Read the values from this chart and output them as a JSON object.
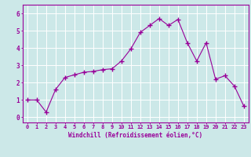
{
  "x": [
    0,
    1,
    2,
    3,
    4,
    5,
    6,
    7,
    8,
    9,
    10,
    11,
    12,
    13,
    14,
    15,
    16,
    17,
    18,
    19,
    20,
    21,
    22,
    23
  ],
  "y": [
    1.0,
    1.0,
    0.3,
    1.6,
    2.3,
    2.45,
    2.6,
    2.65,
    2.75,
    2.8,
    3.25,
    3.95,
    4.9,
    5.3,
    5.7,
    5.3,
    5.65,
    4.3,
    3.25,
    4.3,
    2.2,
    2.4,
    1.8,
    0.65
  ],
  "line_color": "#990099",
  "marker": "+",
  "marker_size": 4,
  "marker_linewidth": 1.0,
  "line_width": 0.8,
  "bg_color": "#cce8e8",
  "grid_color": "#ffffff",
  "xlabel": "Windchill (Refroidissement éolien,°C)",
  "xlabel_color": "#990099",
  "tick_color": "#990099",
  "spine_color": "#990099",
  "ylabel_ticks": [
    0,
    1,
    2,
    3,
    4,
    5,
    6
  ],
  "xlim": [
    -0.5,
    23.5
  ],
  "ylim": [
    -0.3,
    6.5
  ],
  "xtick_fontsize": 5.0,
  "ytick_fontsize": 5.5,
  "xlabel_fontsize": 5.5
}
